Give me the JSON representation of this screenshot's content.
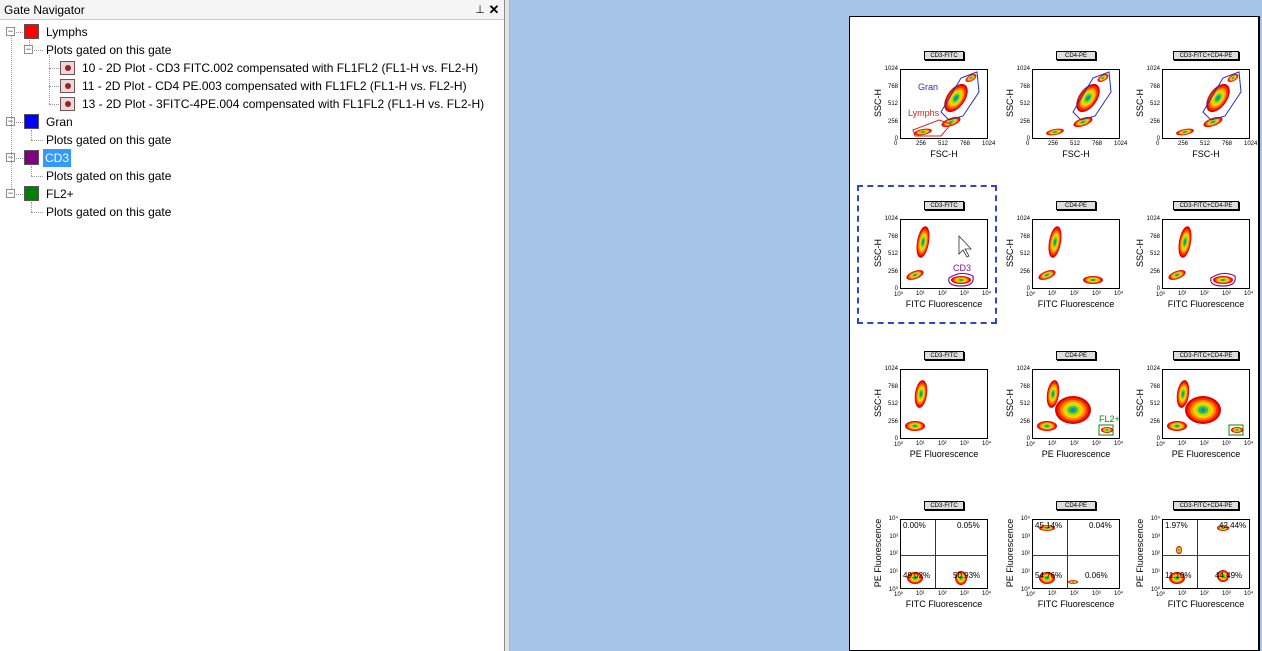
{
  "panel": {
    "title": "Gate Navigator",
    "pin_glyph": "⊥",
    "close_glyph": "✕"
  },
  "tree": {
    "gates": [
      {
        "name": "Lymphs",
        "color": "#ff0000",
        "child_label": "Plots gated on this gate",
        "plots": [
          "10 - 2D Plot - CD3 FITC.002 compensated with FL1FL2 (FL1-H vs. FL2-H)",
          "11 - 2D Plot - CD4 PE.003 compensated with FL1FL2 (FL1-H vs. FL2-H)",
          "13 - 2D Plot - 3FITC-4PE.004 compensated with FL1FL2 (FL1-H vs. FL2-H)"
        ]
      },
      {
        "name": "Gran",
        "color": "#0000ff",
        "child_label": "Plots gated on this gate",
        "plots": []
      },
      {
        "name": "CD3",
        "color": "#800080",
        "child_label": "Plots gated on this gate",
        "plots": [],
        "selected": true
      },
      {
        "name": "FL2+",
        "color": "#008000",
        "child_label": "Plots gated on this gate",
        "plots": []
      }
    ]
  },
  "layout_page": {
    "column_titles": [
      "CD3-FITC",
      "CD4-PE",
      "CD3-FITC+CD4-PE"
    ],
    "rows": [
      {
        "x_label": "FSC-H",
        "y_label": "SSC-H",
        "x_ticks": [
          "0",
          "256",
          "512",
          "768",
          "1024"
        ],
        "y_ticks": [
          "1024",
          "768",
          "512",
          "256",
          "0"
        ]
      },
      {
        "x_label": "FITC Fluorescence",
        "y_label": "SSC-H",
        "x_ticks": [
          "10⁰",
          "10¹",
          "10²",
          "10³",
          "10⁴"
        ],
        "y_ticks": [
          "1024",
          "768",
          "512",
          "256",
          "0"
        ]
      },
      {
        "x_label": "PE Fluorescence",
        "y_label": "SSC-H",
        "x_ticks": [
          "10⁰",
          "10¹",
          "10²",
          "10³",
          "10⁴"
        ],
        "y_ticks": [
          "1024",
          "768",
          "512",
          "256",
          "0"
        ]
      },
      {
        "x_label": "FITC Fluorescence",
        "y_label": "PE Fluorescence",
        "x_ticks": [
          "10⁰",
          "10¹",
          "10²",
          "10³",
          "10⁴"
        ],
        "y_ticks": [
          "10⁴",
          "10³",
          "10²",
          "10¹",
          "10⁰"
        ]
      }
    ],
    "gate_labels": {
      "gran": "Gran",
      "lymphs": "Lymphs",
      "cd3": "CD3",
      "fl2": "FL2+"
    },
    "quadrants": [
      [
        "0.00%",
        "0.05%",
        "49.02%",
        "50.93%"
      ],
      [
        "45.14%",
        "0.04%",
        "54.76%",
        "0.06%"
      ],
      [
        "1.97%",
        "42.44%",
        "11.10%",
        "44.49%"
      ]
    ],
    "colors": {
      "gran_gate": "#2030c0",
      "lymph_gate": "#e02020",
      "cd3_gate": "#8a108a",
      "fl2_gate": "#108010",
      "selection": "#3444c8"
    }
  }
}
